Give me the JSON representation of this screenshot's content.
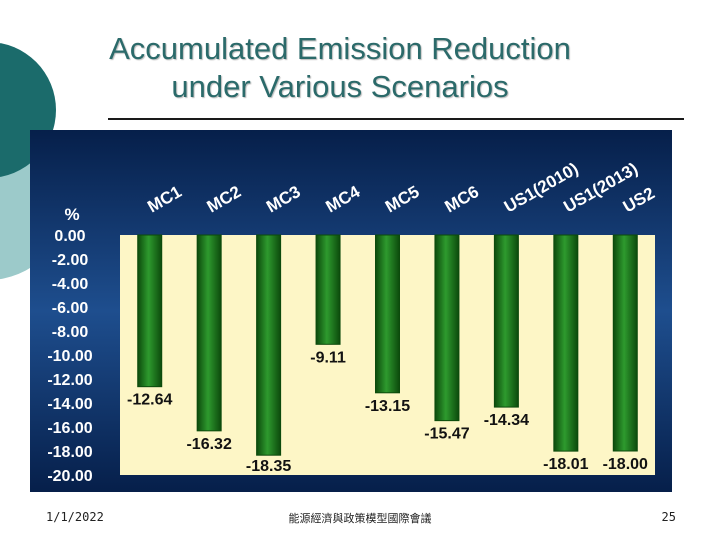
{
  "slide": {
    "title_line1": "Accumulated Emission Reduction",
    "title_line2": "under Various Scenarios",
    "footer_date": "1/1/2022",
    "footer_center": "能源經濟與政策模型國際會議",
    "page_number": "25"
  },
  "colors": {
    "title": "#2b6a6a",
    "bar_dark": "#0c4a0c",
    "bar_light": "#2e9a2e",
    "plot_bg": "#fdf6c6",
    "chart_bg_dark": "#061f4a",
    "chart_bg_mid": "#1e4e8e",
    "label": "#ffffff",
    "value_label": "#121212",
    "deco_teal": "#1b6b6b",
    "deco_light": "#9ccaca"
  },
  "chart_data": {
    "type": "bar",
    "title": "Accumulated Emission Reduction under Various Scenarios",
    "ylabel": "%",
    "xlabel": "",
    "ylim": [
      -20,
      0
    ],
    "grid": false,
    "categories": [
      "MC1",
      "MC2",
      "MC3",
      "MC4",
      "MC5",
      "MC6",
      "US1(2010)",
      "US1(2013)",
      "US2"
    ],
    "values": [
      -12.64,
      -16.32,
      -18.35,
      -9.11,
      -13.15,
      -15.47,
      -14.34,
      -18.01,
      -18.0
    ],
    "value_labels": [
      "-12.64",
      "-16.32",
      "-18.35",
      "-9.11",
      "-13.15",
      "-15.47",
      "-14.34",
      "-18.01",
      "-18.00"
    ],
    "y_ticks": [
      "0.00",
      "-2.00",
      "-4.00",
      "-6.00",
      "-8.00",
      "-10.00",
      "-12.00",
      "-14.00",
      "-16.00",
      "-18.00",
      "-20.00"
    ]
  }
}
